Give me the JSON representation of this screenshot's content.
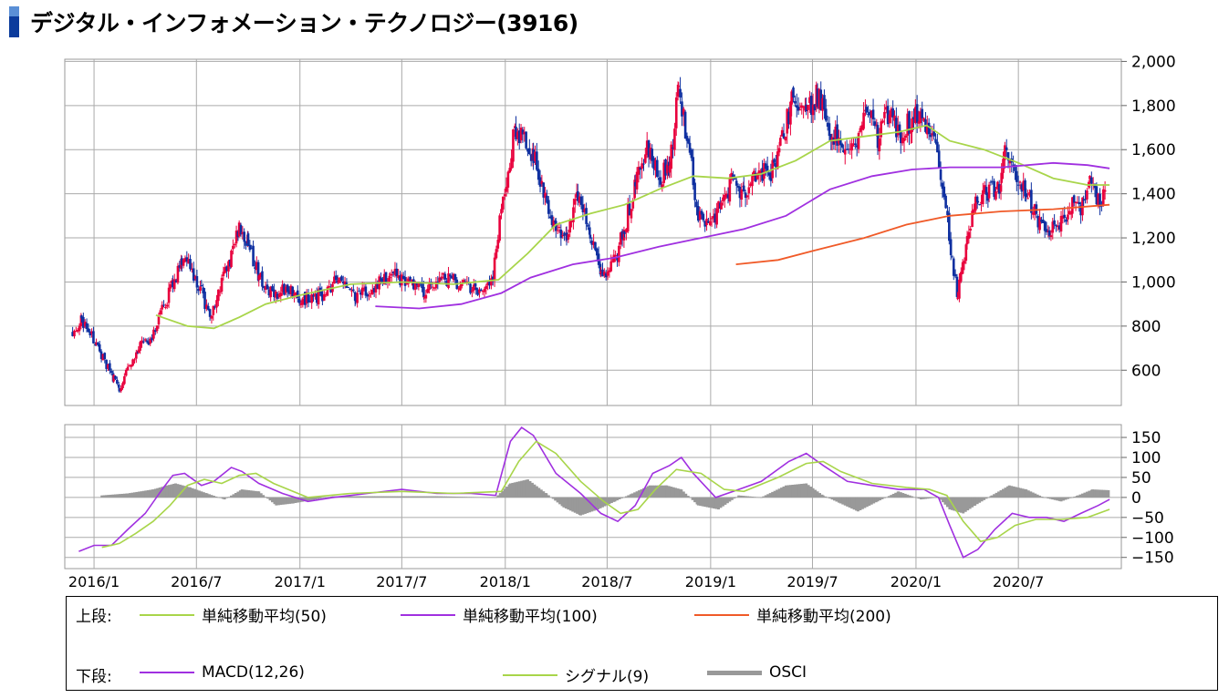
{
  "title": "デジタル・インフォメーション・テクノロジー(3916)",
  "chart_data": [
    {
      "type": "candlestick",
      "panel": "upper",
      "y_ticks": [
        600,
        800,
        1000,
        1200,
        1400,
        1600,
        1800,
        2000
      ],
      "y_tick_labels": [
        "600",
        "800",
        "1,000",
        "1,200",
        "1,400",
        "1,600",
        "1,800",
        "2,000"
      ],
      "ylim": [
        440,
        2010
      ],
      "x_ticks": [
        "2016/1",
        "2016/7",
        "2017/1",
        "2017/7",
        "2018/1",
        "2018/7",
        "2019/1",
        "2019/7",
        "2020/1",
        "2020/7"
      ],
      "x_start": "2015-11-10",
      "x_end": "2020-12-31",
      "colors": {
        "up": "#e8003c",
        "down": "#0e2fa0",
        "ma50": "#a8d54a",
        "ma100": "#a030e0",
        "ma200": "#f05a28"
      },
      "price_path": [
        [
          "2015-11-24",
          780
        ],
        [
          "2015-12-10",
          830
        ],
        [
          "2016-01-05",
          720
        ],
        [
          "2016-01-20",
          640
        ],
        [
          "2016-02-05",
          560
        ],
        [
          "2016-02-15",
          510
        ],
        [
          "2016-03-01",
          600
        ],
        [
          "2016-03-20",
          700
        ],
        [
          "2016-04-10",
          740
        ],
        [
          "2016-05-01",
          880
        ],
        [
          "2016-05-20",
          980
        ],
        [
          "2016-06-05",
          1100
        ],
        [
          "2016-06-20",
          1080
        ],
        [
          "2016-07-10",
          950
        ],
        [
          "2016-07-25",
          840
        ],
        [
          "2016-08-15",
          1000
        ],
        [
          "2016-09-01",
          1120
        ],
        [
          "2016-09-15",
          1260
        ],
        [
          "2016-10-01",
          1180
        ],
        [
          "2016-10-20",
          1030
        ],
        [
          "2016-11-10",
          950
        ],
        [
          "2016-12-10",
          960
        ],
        [
          "2017-01-10",
          920
        ],
        [
          "2017-02-10",
          940
        ],
        [
          "2017-03-10",
          1020
        ],
        [
          "2017-04-10",
          940
        ],
        [
          "2017-05-10",
          960
        ],
        [
          "2017-06-10",
          1040
        ],
        [
          "2017-07-10",
          1000
        ],
        [
          "2017-08-10",
          960
        ],
        [
          "2017-09-10",
          1010
        ],
        [
          "2017-10-10",
          1000
        ],
        [
          "2017-11-10",
          970
        ],
        [
          "2017-12-10",
          1010
        ],
        [
          "2017-12-28",
          1400
        ],
        [
          "2018-01-20",
          1700
        ],
        [
          "2018-02-10",
          1640
        ],
        [
          "2018-02-20",
          1580
        ],
        [
          "2018-03-10",
          1380
        ],
        [
          "2018-04-01",
          1260
        ],
        [
          "2018-04-20",
          1200
        ],
        [
          "2018-05-10",
          1400
        ],
        [
          "2018-06-01",
          1210
        ],
        [
          "2018-06-20",
          1050
        ],
        [
          "2018-07-10",
          1060
        ],
        [
          "2018-08-01",
          1250
        ],
        [
          "2018-08-20",
          1450
        ],
        [
          "2018-09-10",
          1620
        ],
        [
          "2018-10-01",
          1480
        ],
        [
          "2018-10-20",
          1500
        ],
        [
          "2018-11-05",
          1900
        ],
        [
          "2018-11-25",
          1580
        ],
        [
          "2018-12-10",
          1310
        ],
        [
          "2018-12-28",
          1260
        ],
        [
          "2019-01-20",
          1360
        ],
        [
          "2019-02-10",
          1480
        ],
        [
          "2019-03-01",
          1400
        ],
        [
          "2019-03-25",
          1520
        ],
        [
          "2019-04-15",
          1480
        ],
        [
          "2019-05-05",
          1620
        ],
        [
          "2019-05-25",
          1820
        ],
        [
          "2019-06-20",
          1800
        ],
        [
          "2019-07-10",
          1840
        ],
        [
          "2019-08-05",
          1680
        ],
        [
          "2019-08-25",
          1600
        ],
        [
          "2019-09-15",
          1580
        ],
        [
          "2019-10-05",
          1820
        ],
        [
          "2019-10-25",
          1640
        ],
        [
          "2019-11-15",
          1800
        ],
        [
          "2019-12-05",
          1620
        ],
        [
          "2019-12-25",
          1760
        ],
        [
          "2020-01-15",
          1700
        ],
        [
          "2020-02-05",
          1620
        ],
        [
          "2020-02-20",
          1400
        ],
        [
          "2020-03-05",
          1100
        ],
        [
          "2020-03-15",
          940
        ],
        [
          "2020-04-01",
          1200
        ],
        [
          "2020-04-20",
          1380
        ],
        [
          "2020-05-10",
          1400
        ],
        [
          "2020-06-01",
          1460
        ],
        [
          "2020-06-10",
          1620
        ],
        [
          "2020-06-25",
          1500
        ],
        [
          "2020-07-15",
          1400
        ],
        [
          "2020-08-05",
          1280
        ],
        [
          "2020-08-25",
          1240
        ],
        [
          "2020-09-15",
          1260
        ],
        [
          "2020-10-05",
          1350
        ],
        [
          "2020-10-25",
          1340
        ],
        [
          "2020-11-05",
          1480
        ],
        [
          "2020-11-20",
          1360
        ],
        [
          "2020-12-05",
          1400
        ]
      ],
      "series": [
        {
          "name": "単純移動平均(50)",
          "color": "#a8d54a",
          "x": [
            "2016-04-20",
            "2016-06-15",
            "2016-08-01",
            "2016-09-15",
            "2016-11-01",
            "2017-01-01",
            "2017-04-01",
            "2017-07-01",
            "2017-10-01",
            "2017-12-20",
            "2018-02-10",
            "2018-04-01",
            "2018-06-01",
            "2018-08-01",
            "2018-10-01",
            "2018-12-01",
            "2019-02-01",
            "2019-04-01",
            "2019-06-01",
            "2019-08-01",
            "2019-10-01",
            "2019-12-01",
            "2020-01-20",
            "2020-03-01",
            "2020-05-01",
            "2020-07-01",
            "2020-09-01",
            "2020-11-01",
            "2020-12-10"
          ],
          "values": [
            850,
            800,
            790,
            840,
            900,
            940,
            990,
            1000,
            990,
            1010,
            1130,
            1260,
            1310,
            1350,
            1420,
            1480,
            1470,
            1490,
            1550,
            1640,
            1660,
            1680,
            1710,
            1640,
            1600,
            1540,
            1470,
            1440,
            1440
          ]
        },
        {
          "name": "単純移動平均(100)",
          "color": "#a030e0",
          "x": [
            "2017-05-15",
            "2017-08-01",
            "2017-10-15",
            "2017-12-25",
            "2018-02-15",
            "2018-05-01",
            "2018-07-15",
            "2018-10-01",
            "2018-12-15",
            "2019-03-01",
            "2019-05-15",
            "2019-08-01",
            "2019-10-15",
            "2019-12-25",
            "2020-03-01",
            "2020-06-01",
            "2020-09-01",
            "2020-11-01",
            "2020-12-10"
          ],
          "values": [
            890,
            880,
            900,
            950,
            1020,
            1080,
            1110,
            1160,
            1200,
            1240,
            1300,
            1420,
            1480,
            1510,
            1520,
            1520,
            1540,
            1530,
            1515
          ]
        },
        {
          "name": "単純移動平均(200)",
          "color": "#f05a28",
          "x": [
            "2019-02-15",
            "2019-05-01",
            "2019-07-15",
            "2019-10-01",
            "2019-12-15",
            "2020-03-01",
            "2020-06-01",
            "2020-09-01",
            "2020-12-10"
          ],
          "values": [
            1080,
            1100,
            1150,
            1200,
            1260,
            1300,
            1320,
            1330,
            1350
          ]
        }
      ]
    },
    {
      "type": "line",
      "panel": "lower",
      "y_ticks": [
        150,
        100,
        50,
        0,
        -50,
        -100,
        -150
      ],
      "y_tick_labels": [
        "150",
        "100",
        "50",
        "0",
        "−50",
        "−100",
        "−150"
      ],
      "ylim": [
        -178,
        182
      ],
      "series": [
        {
          "name": "MACD(12,26)",
          "color": "#a030e0",
          "x": [
            "2015-12-05",
            "2016-01-01",
            "2016-02-01",
            "2016-03-01",
            "2016-04-01",
            "2016-05-01",
            "2016-05-20",
            "2016-06-10",
            "2016-07-10",
            "2016-08-01",
            "2016-09-01",
            "2016-09-20",
            "2016-10-20",
            "2016-12-01",
            "2017-01-15",
            "2017-03-01",
            "2017-05-01",
            "2017-07-01",
            "2017-09-01",
            "2017-11-01",
            "2017-12-15",
            "2018-01-10",
            "2018-01-30",
            "2018-02-20",
            "2018-04-01",
            "2018-05-15",
            "2018-06-20",
            "2018-07-20",
            "2018-08-20",
            "2018-09-20",
            "2018-10-20",
            "2018-11-10",
            "2018-12-01",
            "2019-01-10",
            "2019-02-20",
            "2019-04-01",
            "2019-05-20",
            "2019-06-20",
            "2019-07-20",
            "2019-09-01",
            "2019-10-15",
            "2019-12-01",
            "2020-01-15",
            "2020-02-10",
            "2020-03-01",
            "2020-03-25",
            "2020-04-20",
            "2020-05-20",
            "2020-06-20",
            "2020-07-20",
            "2020-08-20",
            "2020-09-20",
            "2020-10-20",
            "2020-11-20",
            "2020-12-10"
          ],
          "values": [
            -135,
            -120,
            -120,
            -80,
            -40,
            20,
            55,
            60,
            30,
            40,
            75,
            65,
            35,
            10,
            -10,
            0,
            10,
            20,
            10,
            10,
            5,
            140,
            175,
            155,
            60,
            10,
            -40,
            -60,
            -20,
            60,
            80,
            100,
            60,
            0,
            20,
            40,
            90,
            110,
            80,
            40,
            30,
            20,
            20,
            0,
            -70,
            -150,
            -130,
            -80,
            -40,
            -50,
            -50,
            -60,
            -40,
            -20,
            -5
          ]
        },
        {
          "name": "シグナル(9)",
          "color": "#a8d54a",
          "x": [
            "2016-01-15",
            "2016-02-15",
            "2016-03-15",
            "2016-04-15",
            "2016-05-15",
            "2016-06-15",
            "2016-07-15",
            "2016-08-15",
            "2016-09-15",
            "2016-10-15",
            "2016-11-15",
            "2017-01-15",
            "2017-04-01",
            "2017-07-01",
            "2017-10-01",
            "2017-12-25",
            "2018-01-25",
            "2018-02-25",
            "2018-04-01",
            "2018-05-15",
            "2018-06-25",
            "2018-07-25",
            "2018-08-25",
            "2018-09-25",
            "2018-11-01",
            "2018-12-15",
            "2019-01-25",
            "2019-03-01",
            "2019-05-01",
            "2019-06-20",
            "2019-07-20",
            "2019-08-20",
            "2019-10-15",
            "2019-12-15",
            "2020-01-25",
            "2020-02-25",
            "2020-03-25",
            "2020-04-25",
            "2020-05-25",
            "2020-06-25",
            "2020-08-01",
            "2020-09-15",
            "2020-11-01",
            "2020-12-10"
          ],
          "values": [
            -125,
            -115,
            -90,
            -60,
            -20,
            30,
            45,
            35,
            55,
            60,
            35,
            0,
            10,
            15,
            10,
            15,
            90,
            140,
            110,
            40,
            -10,
            -40,
            -30,
            20,
            70,
            60,
            20,
            15,
            50,
            85,
            90,
            65,
            35,
            25,
            20,
            5,
            -60,
            -110,
            -100,
            -70,
            -55,
            -55,
            -50,
            -30
          ]
        },
        {
          "name": "OSCI",
          "color": "#999999",
          "x": [
            "2016-01-15",
            "2016-03-01",
            "2016-04-15",
            "2016-05-10",
            "2016-05-25",
            "2016-06-20",
            "2016-07-20",
            "2016-08-20",
            "2016-09-20",
            "2016-10-20",
            "2016-11-20",
            "2016-12-20",
            "2017-03-01",
            "2017-06-01",
            "2017-09-01",
            "2017-12-15",
            "2018-01-10",
            "2018-02-10",
            "2018-03-15",
            "2018-04-15",
            "2018-05-15",
            "2018-06-15",
            "2018-07-15",
            "2018-08-15",
            "2018-09-15",
            "2018-10-15",
            "2018-11-10",
            "2018-12-10",
            "2019-01-15",
            "2019-02-20",
            "2019-04-01",
            "2019-05-15",
            "2019-06-20",
            "2019-07-20",
            "2019-08-20",
            "2019-09-20",
            "2019-10-25",
            "2019-12-01",
            "2020-01-10",
            "2020-02-10",
            "2020-03-01",
            "2020-03-25",
            "2020-04-15",
            "2020-05-15",
            "2020-06-15",
            "2020-07-15",
            "2020-08-15",
            "2020-09-15",
            "2020-10-15",
            "2020-11-10",
            "2020-12-10"
          ],
          "values": [
            5,
            10,
            20,
            30,
            35,
            25,
            10,
            -5,
            20,
            15,
            -20,
            -15,
            3,
            3,
            3,
            0,
            35,
            45,
            10,
            -25,
            -45,
            -30,
            -10,
            10,
            30,
            30,
            20,
            -20,
            -30,
            5,
            0,
            30,
            35,
            5,
            -15,
            -35,
            -10,
            15,
            -5,
            0,
            -30,
            -40,
            -20,
            5,
            30,
            20,
            0,
            -10,
            5,
            20,
            18
          ]
        }
      ]
    }
  ],
  "legend": {
    "upper_label": "上段:",
    "lower_label": "下段:",
    "ma50": "単純移動平均(50)",
    "ma100": "単純移動平均(100)",
    "ma200": "単純移動平均(200)",
    "macd": "MACD(12,26)",
    "signal": "シグナル(9)",
    "osci": "OSCI"
  }
}
